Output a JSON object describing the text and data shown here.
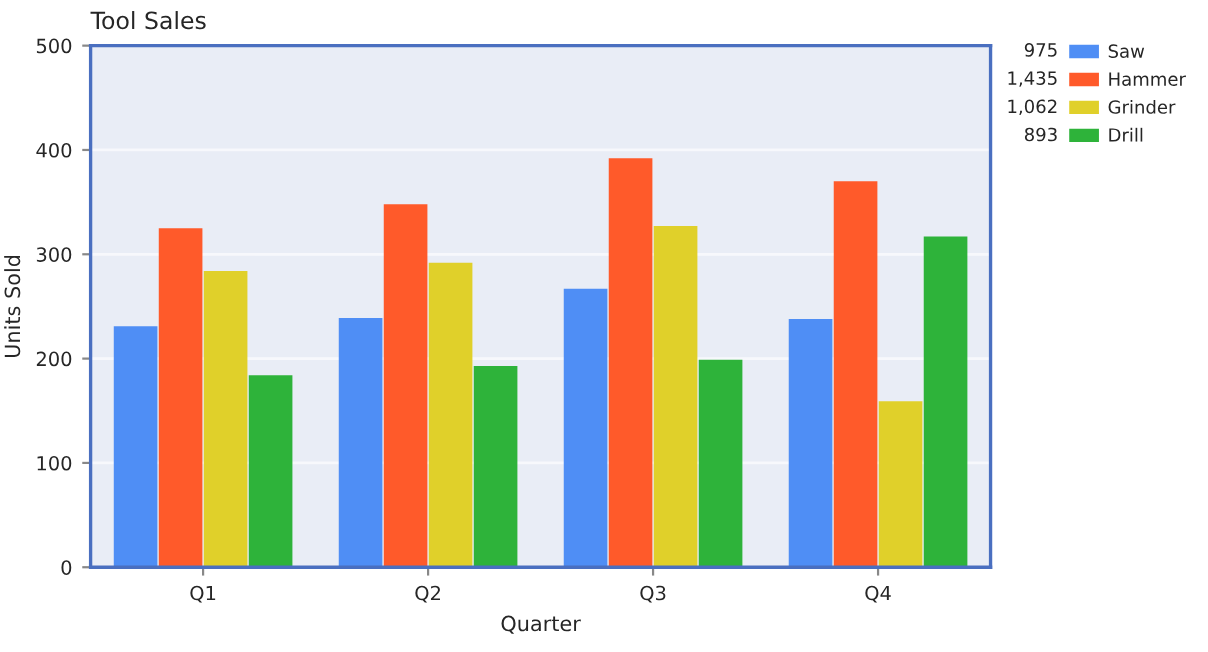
{
  "chart_data": {
    "type": "bar",
    "title": "Tool Sales",
    "xlabel": "Quarter",
    "ylabel": "Units Sold",
    "categories": [
      "Q1",
      "Q2",
      "Q3",
      "Q4"
    ],
    "series": [
      {
        "name": "Saw",
        "color": "#4f8ef5",
        "values": [
          231,
          239,
          267,
          238
        ]
      },
      {
        "name": "Hammer",
        "color": "#ff5a2a",
        "values": [
          325,
          348,
          392,
          370
        ]
      },
      {
        "name": "Grinder",
        "color": "#e0d02a",
        "values": [
          284,
          292,
          327,
          159
        ]
      },
      {
        "name": "Drill",
        "color": "#2eb33a",
        "values": [
          184,
          193,
          199,
          317
        ]
      }
    ],
    "annotations": [
      "975",
      "1,435",
      "1,062",
      "893"
    ],
    "ylim": [
      0,
      500
    ],
    "yticks": [
      0,
      100,
      200,
      300,
      400,
      500
    ],
    "grid": "y",
    "legend": "top right"
  }
}
